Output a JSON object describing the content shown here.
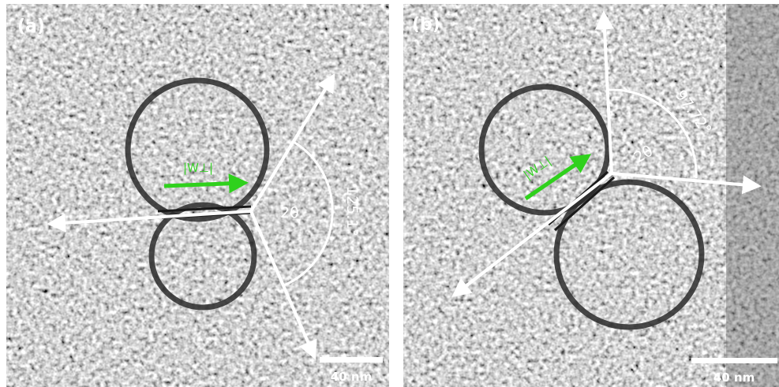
{
  "panels": [
    {
      "label": "(a)",
      "angle_symbol": "2θ",
      "angle": "125.1°",
      "vector_label": "|W⊥|",
      "scale_bar": "40 nm"
    },
    {
      "label": "(b)",
      "angle_symbol": "2θ",
      "angle": "97.72°",
      "vector_label": "|W⊥|",
      "scale_bar": "40 nm"
    }
  ]
}
